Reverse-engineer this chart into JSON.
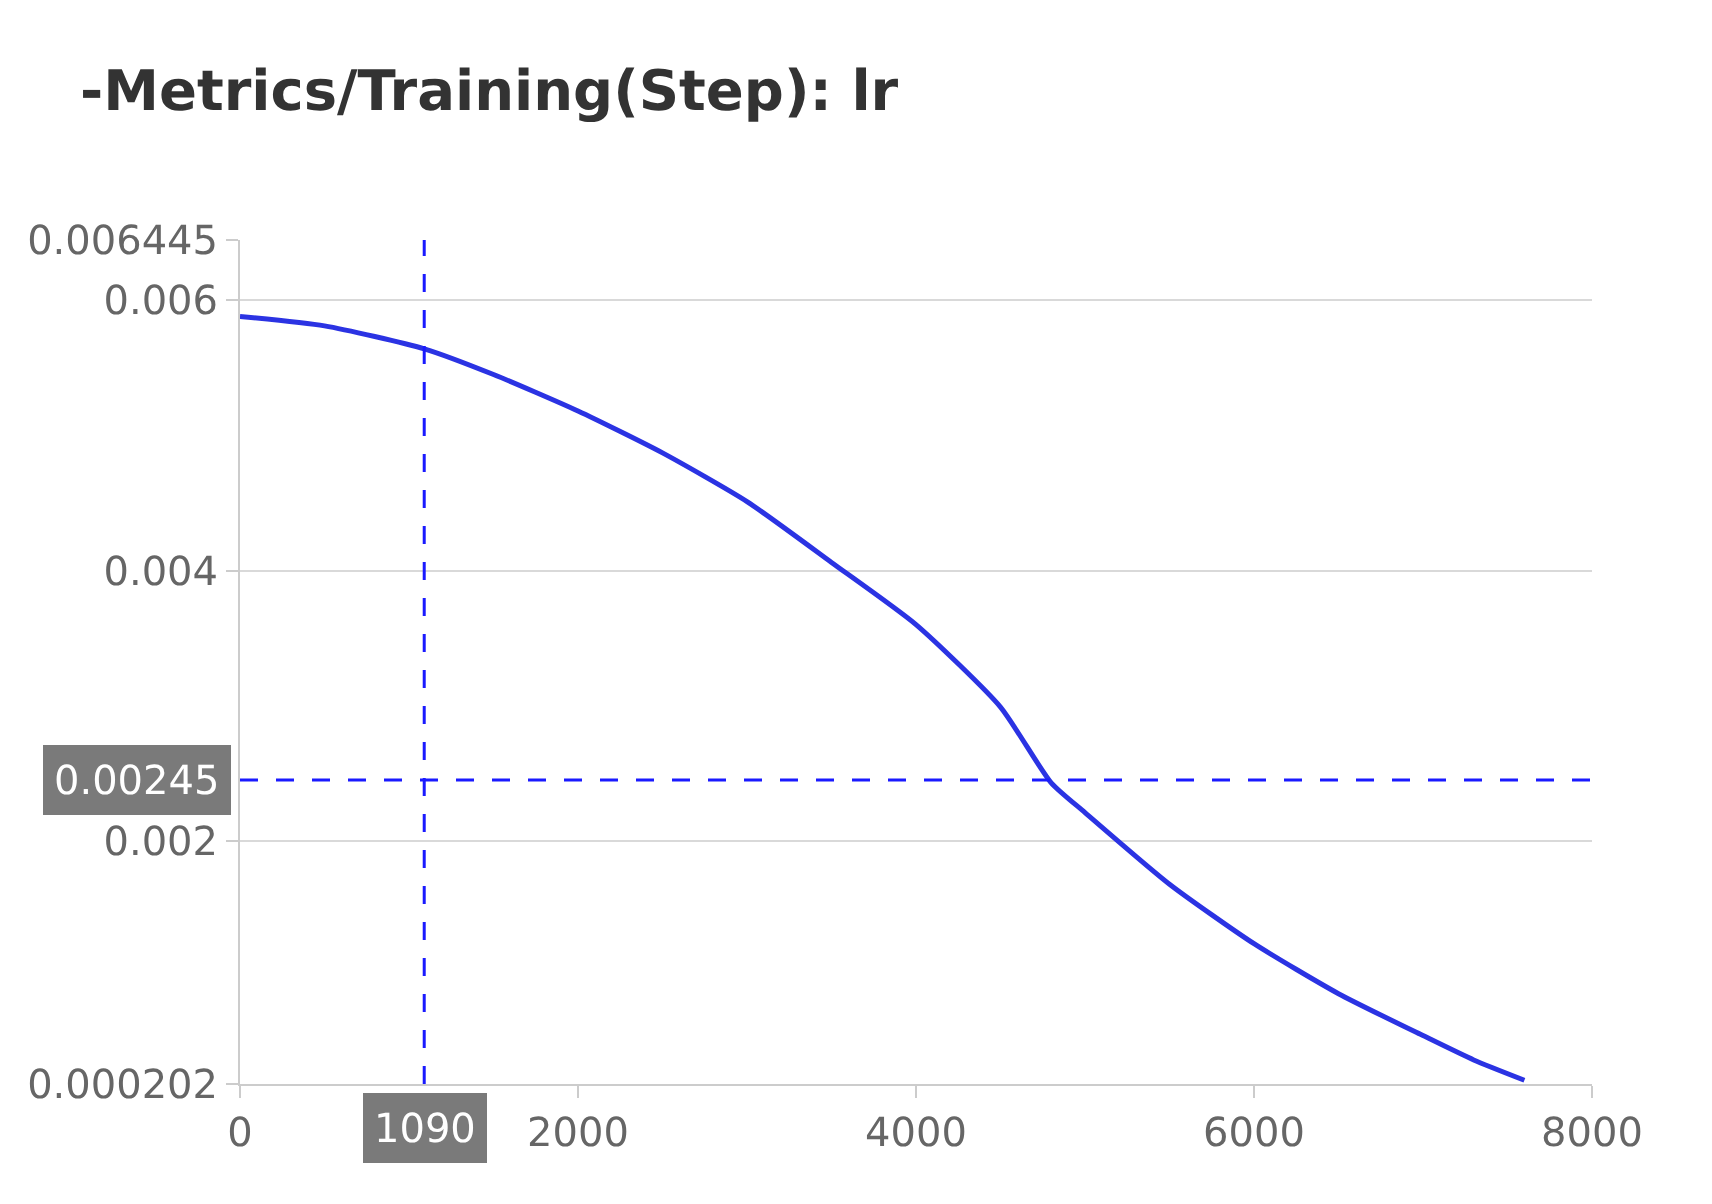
{
  "chart_data": {
    "type": "line",
    "title": "-Metrics/Training(Step): lr",
    "x": [
      0,
      500,
      1090,
      1500,
      2000,
      2500,
      3000,
      3500,
      4000,
      4500,
      4800,
      5000,
      5500,
      6000,
      6500,
      7000,
      7300,
      7600
    ],
    "series": [
      {
        "color": "#2b33e3",
        "values": [
          0.00588,
          0.00581,
          0.00564,
          0.00545,
          0.00518,
          0.00487,
          0.00451,
          0.00406,
          0.0036,
          0.00299,
          0.00243,
          0.00221,
          0.00168,
          0.00124,
          0.00087,
          0.00056,
          0.00038,
          0.00023
        ]
      }
    ],
    "xlim": [
      0,
      8000
    ],
    "xticks": [
      0,
      2000,
      4000,
      6000,
      8000
    ],
    "ylim": [
      0.000202,
      0.006445
    ],
    "yticks": [
      0.000202,
      0.002,
      0.004,
      0.006,
      0.006445
    ],
    "grid": "y",
    "marker": "none",
    "line_style": "solid",
    "ref_lines": [
      {
        "axis": "x",
        "value": 1090,
        "label": "1090",
        "color": "#1a1aff",
        "line_style": "dashed"
      },
      {
        "axis": "y",
        "value": 0.00245,
        "label": "0.00245",
        "color": "#1a1aff",
        "line_style": "dashed"
      }
    ]
  }
}
